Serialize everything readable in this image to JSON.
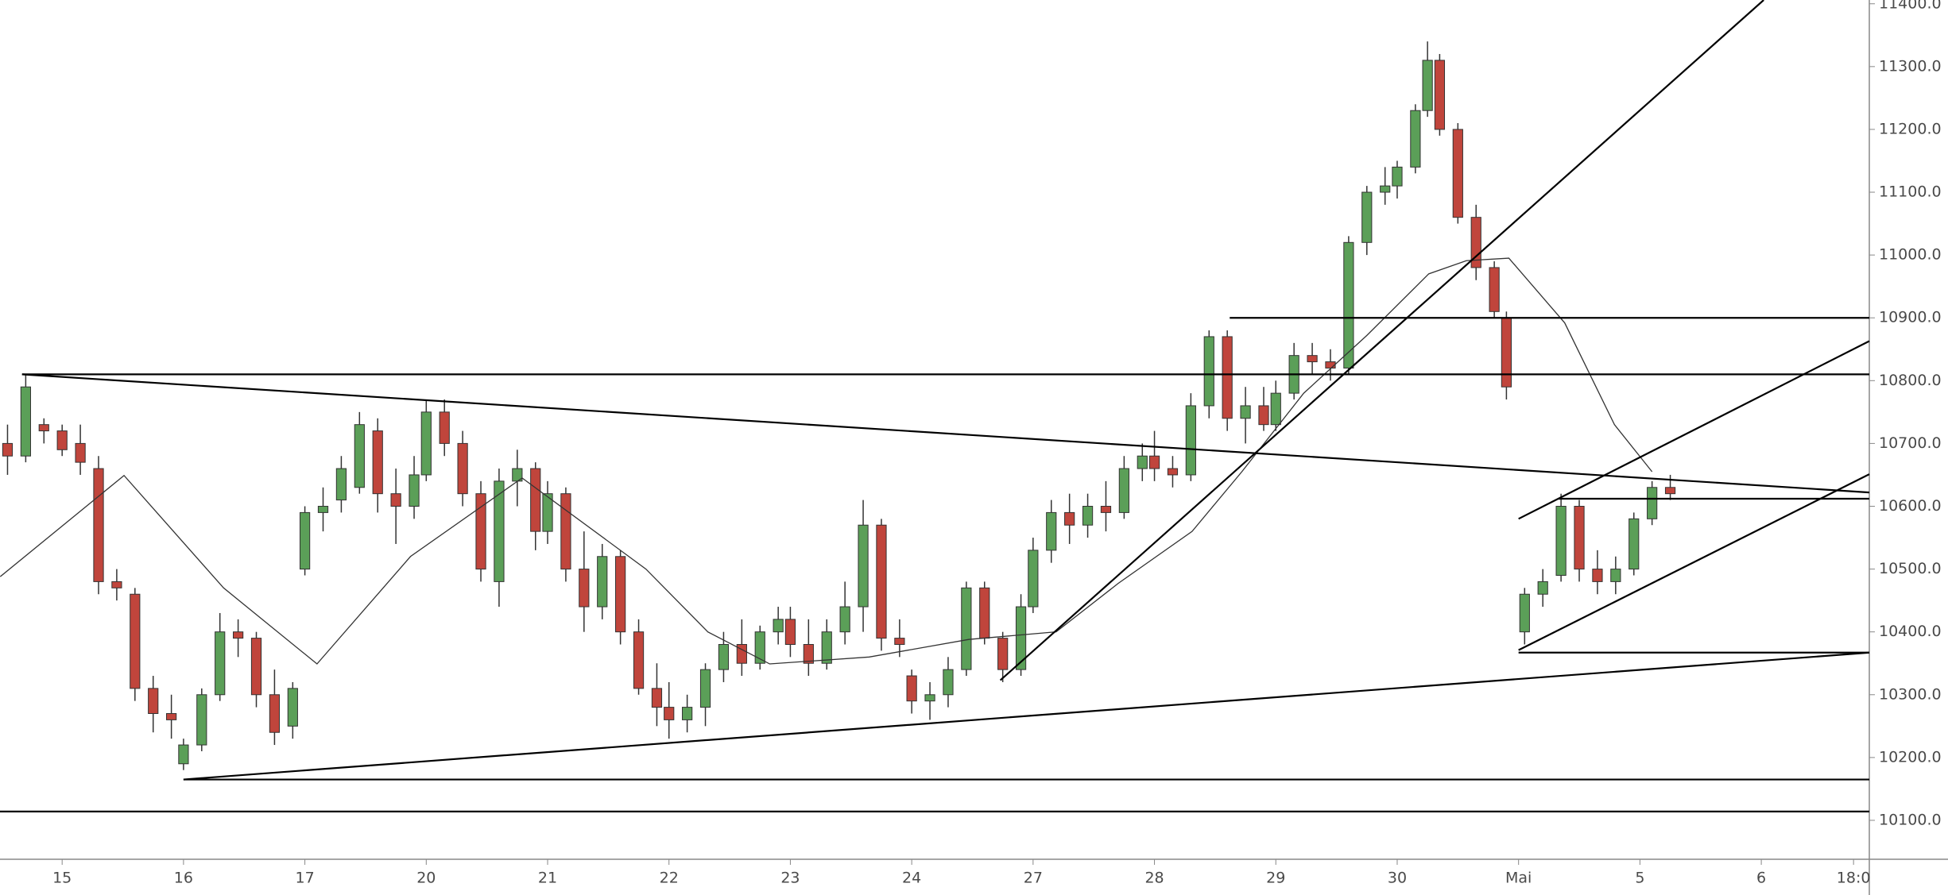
{
  "chart_data": {
    "type": "candlestick",
    "up_color": "#5b9f58",
    "down_color": "#c0453c",
    "wick_color": "#333333",
    "ma_color": "#333333",
    "drawing_color": "#000000",
    "xlim": [
      -0.512,
      14.89
    ],
    "ylim": [
      10038,
      11406
    ],
    "xticks": [
      {
        "value": 0,
        "label": "15"
      },
      {
        "value": 1,
        "label": "16"
      },
      {
        "value": 2,
        "label": "17"
      },
      {
        "value": 3,
        "label": "20"
      },
      {
        "value": 4,
        "label": "21"
      },
      {
        "value": 5,
        "label": "22"
      },
      {
        "value": 6,
        "label": "23"
      },
      {
        "value": 7,
        "label": "24"
      },
      {
        "value": 8,
        "label": "27"
      },
      {
        "value": 9,
        "label": "28"
      },
      {
        "value": 10,
        "label": "29"
      },
      {
        "value": 11,
        "label": "30"
      },
      {
        "value": 12,
        "label": "Mai"
      },
      {
        "value": 13,
        "label": "5"
      },
      {
        "value": 14,
        "label": "6"
      },
      {
        "value": 14.76,
        "label": "18:0"
      }
    ],
    "yticks": [
      {
        "value": 10100,
        "label": "10100.0"
      },
      {
        "value": 10200,
        "label": "10200.0"
      },
      {
        "value": 10300,
        "label": "10300.0"
      },
      {
        "value": 10400,
        "label": "10400.0"
      },
      {
        "value": 10500,
        "label": "10500.0"
      },
      {
        "value": 10600,
        "label": "10600.0"
      },
      {
        "value": 10700,
        "label": "10700.0"
      },
      {
        "value": 10800,
        "label": "10800.0"
      },
      {
        "value": 10900,
        "label": "10900.0"
      },
      {
        "value": 11000,
        "label": "11000.0"
      },
      {
        "value": 11100,
        "label": "11100.0"
      },
      {
        "value": 11200,
        "label": "11200.0"
      },
      {
        "value": 11300,
        "label": "11300.0"
      },
      {
        "value": 11400,
        "label": "11400.0"
      }
    ],
    "x": [
      -0.45,
      -0.3,
      -0.15,
      0,
      0.15,
      0.3,
      0.45,
      0.6,
      0.75,
      0.9,
      1.0,
      1.15,
      1.3,
      1.45,
      1.6,
      1.75,
      1.9,
      2.0,
      2.15,
      2.3,
      2.45,
      2.6,
      2.75,
      2.9,
      3.0,
      3.15,
      3.3,
      3.45,
      3.6,
      3.75,
      3.9,
      4.0,
      4.15,
      4.3,
      4.45,
      4.6,
      4.75,
      4.9,
      5.0,
      5.15,
      5.3,
      5.45,
      5.6,
      5.75,
      5.9,
      6.0,
      6.15,
      6.3,
      6.45,
      6.6,
      6.75,
      6.9,
      7.0,
      7.15,
      7.3,
      7.45,
      7.6,
      7.75,
      7.9,
      8.0,
      8.15,
      8.3,
      8.45,
      8.6,
      8.75,
      8.9,
      9.0,
      9.15,
      9.3,
      9.45,
      9.6,
      9.75,
      9.9,
      10.0,
      10.15,
      10.3,
      10.45,
      10.6,
      10.75,
      10.9,
      11.0,
      11.15,
      11.25,
      11.35,
      11.5,
      11.65,
      11.8,
      11.9,
      12.05,
      12.2,
      12.35,
      12.5,
      12.65,
      12.8,
      12.95,
      13.1,
      13.25
    ],
    "open": [
      10700,
      10680,
      10730,
      10720,
      10700,
      10660,
      10480,
      10460,
      10310,
      10270,
      10190,
      10220,
      10300,
      10400,
      10390,
      10300,
      10250,
      10500,
      10590,
      10610,
      10630,
      10720,
      10620,
      10600,
      10650,
      10750,
      10700,
      10620,
      10480,
      10640,
      10660,
      10560,
      10620,
      10500,
      10440,
      10520,
      10400,
      10310,
      10280,
      10260,
      10280,
      10340,
      10380,
      10350,
      10400,
      10420,
      10380,
      10350,
      10400,
      10440,
      10570,
      10390,
      10330,
      10290,
      10300,
      10340,
      10470,
      10390,
      10340,
      10440,
      10530,
      10590,
      10570,
      10600,
      10590,
      10660,
      10680,
      10660,
      10650,
      10760,
      10870,
      10740,
      10760,
      10730,
      10780,
      10840,
      10830,
      10820,
      11020,
      11100,
      11110,
      11140,
      11230,
      11310,
      11200,
      11060,
      10980,
      10900,
      10400,
      10460,
      10490,
      10600,
      10500,
      10480,
      10500,
      10580,
      10630
    ],
    "high": [
      10730,
      10810,
      10740,
      10730,
      10730,
      10680,
      10500,
      10470,
      10330,
      10300,
      10230,
      10310,
      10430,
      10420,
      10400,
      10340,
      10320,
      10600,
      10630,
      10680,
      10750,
      10740,
      10660,
      10680,
      10770,
      10770,
      10720,
      10640,
      10660,
      10690,
      10670,
      10640,
      10630,
      10560,
      10540,
      10530,
      10420,
      10350,
      10320,
      10300,
      10350,
      10400,
      10420,
      10410,
      10440,
      10440,
      10420,
      10420,
      10480,
      10610,
      10580,
      10420,
      10340,
      10320,
      10360,
      10480,
      10480,
      10400,
      10460,
      10550,
      10610,
      10620,
      10620,
      10640,
      10680,
      10700,
      10720,
      10680,
      10780,
      10880,
      10880,
      10790,
      10790,
      10800,
      10860,
      10860,
      10850,
      11030,
      11110,
      11140,
      11150,
      11240,
      11340,
      11320,
      11210,
      11080,
      10990,
      10910,
      10470,
      10500,
      10620,
      10610,
      10530,
      10520,
      10590,
      10640,
      10650
    ],
    "low": [
      10650,
      10670,
      10700,
      10680,
      10650,
      10460,
      10450,
      10290,
      10240,
      10230,
      10180,
      10210,
      10290,
      10360,
      10280,
      10220,
      10230,
      10490,
      10560,
      10590,
      10620,
      10590,
      10540,
      10580,
      10640,
      10680,
      10600,
      10480,
      10440,
      10600,
      10530,
      10540,
      10480,
      10400,
      10420,
      10380,
      10300,
      10250,
      10230,
      10240,
      10250,
      10320,
      10330,
      10340,
      10380,
      10360,
      10330,
      10340,
      10380,
      10400,
      10370,
      10360,
      10270,
      10260,
      10280,
      10330,
      10380,
      10320,
      10330,
      10430,
      10510,
      10540,
      10550,
      10560,
      10580,
      10640,
      10640,
      10630,
      10640,
      10740,
      10720,
      10700,
      10720,
      10720,
      10770,
      10810,
      10800,
      10810,
      11000,
      11080,
      11090,
      11130,
      11220,
      11190,
      11050,
      10960,
      10900,
      10770,
      10380,
      10440,
      10480,
      10480,
      10460,
      10460,
      10490,
      10570,
      10610
    ],
    "close": [
      10680,
      10790,
      10720,
      10690,
      10670,
      10480,
      10470,
      10310,
      10270,
      10260,
      10220,
      10300,
      10400,
      10390,
      10300,
      10240,
      10310,
      10590,
      10600,
      10660,
      10730,
      10620,
      10600,
      10650,
      10750,
      10700,
      10620,
      10500,
      10640,
      10660,
      10560,
      10620,
      10500,
      10440,
      10520,
      10400,
      10310,
      10280,
      10260,
      10280,
      10340,
      10380,
      10350,
      10400,
      10420,
      10380,
      10350,
      10400,
      10440,
      10570,
      10390,
      10380,
      10290,
      10300,
      10340,
      10470,
      10390,
      10340,
      10440,
      10530,
      10590,
      10570,
      10600,
      10590,
      10660,
      10680,
      10660,
      10650,
      10760,
      10870,
      10740,
      10760,
      10730,
      10780,
      10840,
      10830,
      10820,
      11020,
      11100,
      11110,
      11140,
      11230,
      11310,
      11200,
      11060,
      10980,
      10910,
      10790,
      10460,
      10480,
      10600,
      10500,
      10480,
      10500,
      10580,
      10630,
      10620
    ],
    "ma": {
      "x": [
        -0.51,
        0.51,
        1.33,
        2.1,
        2.87,
        3.79,
        4.81,
        5.32,
        5.83,
        6.65,
        7.47,
        8.19,
        8.7,
        9.31,
        9.72,
        10.23,
        10.75,
        11.26,
        11.57,
        11.92,
        12.38,
        12.79,
        13.1
      ],
      "values": [
        10488,
        10649,
        10470,
        10349,
        10520,
        10645,
        10500,
        10400,
        10349,
        10360,
        10388,
        10400,
        10477,
        10560,
        10655,
        10780,
        10872,
        10970,
        10991,
        10995,
        10892,
        10730,
        10655
      ]
    },
    "drawings": [
      {
        "x": [
          -0.33,
          14.89
        ],
        "y": [
          10810,
          10810
        ]
      },
      {
        "x": [
          -0.33,
          14.89
        ],
        "y": [
          10810,
          10622
        ]
      },
      {
        "x": [
          9.62,
          14.89
        ],
        "y": [
          10900,
          10900
        ]
      },
      {
        "x": [
          1.0,
          14.89
        ],
        "y": [
          10165,
          10165
        ]
      },
      {
        "x": [
          -0.512,
          14.89
        ],
        "y": [
          10114,
          10114
        ]
      },
      {
        "x": [
          1.0,
          14.89
        ],
        "y": [
          10165,
          10367
        ]
      },
      {
        "x": [
          12.0,
          14.89
        ],
        "y": [
          10367,
          10367
        ]
      },
      {
        "x": [
          7.73,
          14.02
        ],
        "y": [
          10323,
          11406
        ]
      },
      {
        "x": [
          12.0,
          14.89
        ],
        "y": [
          10580,
          10863
        ]
      },
      {
        "x": [
          12.0,
          14.89
        ],
        "y": [
          10371,
          10651
        ]
      },
      {
        "x": [
          12.33,
          14.89
        ],
        "y": [
          10612,
          10612
        ]
      }
    ]
  }
}
